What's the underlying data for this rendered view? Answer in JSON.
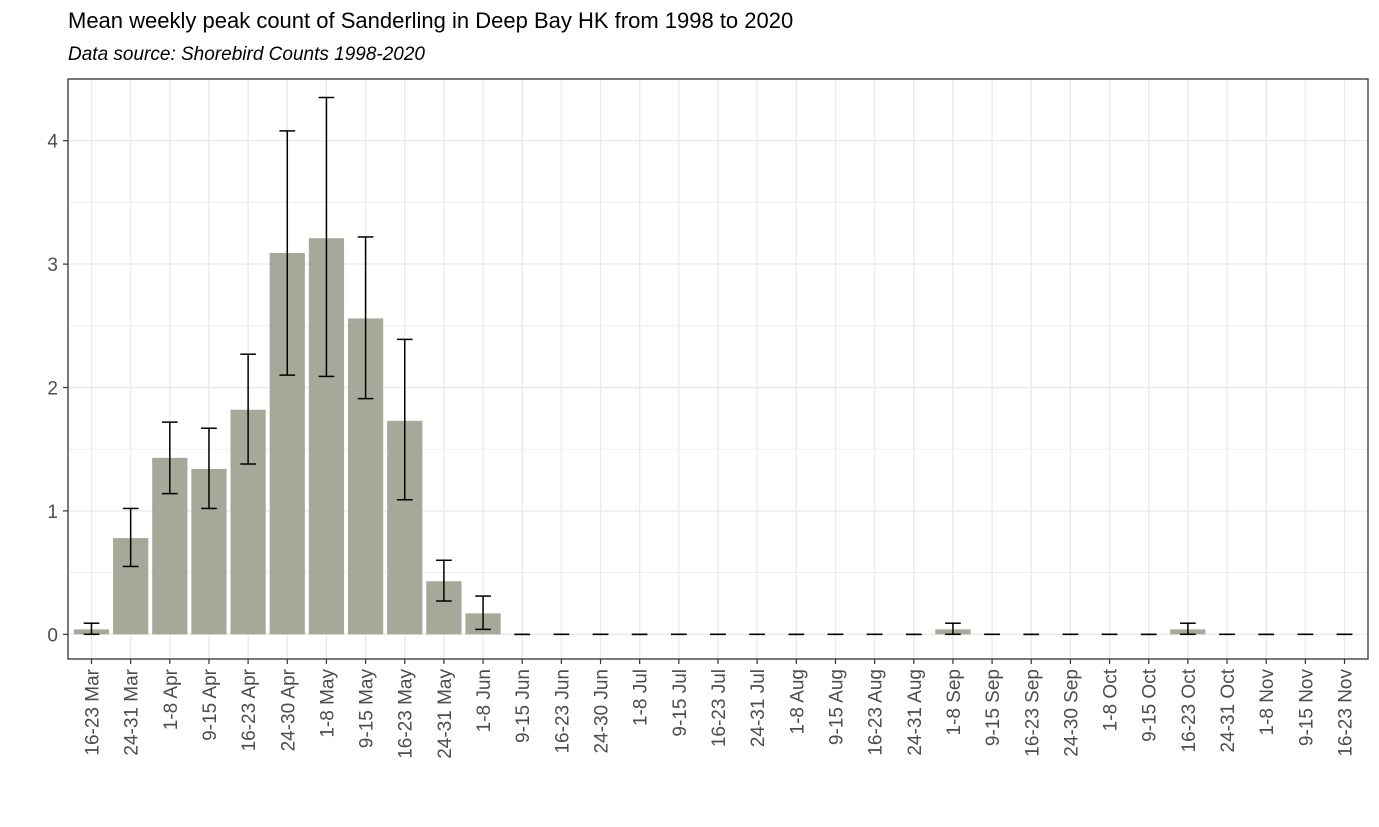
{
  "colors": {
    "bar": "#a6a899",
    "grid": "#ebebeb",
    "panel_border": "#333333",
    "error_bar": "#000000",
    "tick_text": "#4d4d4d"
  },
  "chart_data": {
    "type": "bar",
    "title": "Mean weekly peak count of Sanderling in Deep Bay HK from 1998 to 2020",
    "subtitle": "Data source: Shorebird Counts 1998-2020",
    "xlabel": "",
    "ylabel": "",
    "ylim": [
      -0.2,
      4.5
    ],
    "yticks": [
      0,
      1,
      2,
      3,
      4
    ],
    "grid": true,
    "categories": [
      "16-23 Mar",
      "24-31 Mar",
      "1-8 Apr",
      "9-15 Apr",
      "16-23 Apr",
      "24-30 Apr",
      "1-8 May",
      "9-15 May",
      "16-23 May",
      "24-31 May",
      "1-8 Jun",
      "9-15 Jun",
      "16-23 Jun",
      "24-30 Jun",
      "1-8 Jul",
      "9-15 Jul",
      "16-23 Jul",
      "24-31 Jul",
      "1-8 Aug",
      "9-15 Aug",
      "16-23 Aug",
      "24-31 Aug",
      "1-8 Sep",
      "9-15 Sep",
      "16-23 Sep",
      "24-30 Sep",
      "1-8 Oct",
      "9-15 Oct",
      "16-23 Oct",
      "24-31 Oct",
      "1-8 Nov",
      "9-15 Nov",
      "16-23 Nov"
    ],
    "values": [
      0.04,
      0.78,
      1.43,
      1.34,
      1.82,
      3.09,
      3.21,
      2.56,
      1.73,
      0.43,
      0.17,
      0,
      0,
      0,
      0,
      0,
      0,
      0,
      0,
      0,
      0,
      0,
      0.04,
      0,
      0,
      0,
      0,
      0,
      0.04,
      0,
      0,
      0,
      0
    ],
    "error_low": [
      0.0,
      0.55,
      1.14,
      1.02,
      1.38,
      2.1,
      2.09,
      1.91,
      1.09,
      0.27,
      0.04,
      0,
      0,
      0,
      0,
      0,
      0,
      0,
      0,
      0,
      0,
      0,
      0.0,
      0,
      0,
      0,
      0,
      0,
      0.0,
      0,
      0,
      0,
      0
    ],
    "error_high": [
      0.09,
      1.02,
      1.72,
      1.67,
      2.27,
      4.08,
      4.35,
      3.22,
      2.39,
      0.6,
      0.31,
      0,
      0,
      0,
      0,
      0,
      0,
      0,
      0,
      0,
      0,
      0,
      0.09,
      0,
      0,
      0,
      0,
      0,
      0.09,
      0,
      0,
      0,
      0
    ]
  }
}
